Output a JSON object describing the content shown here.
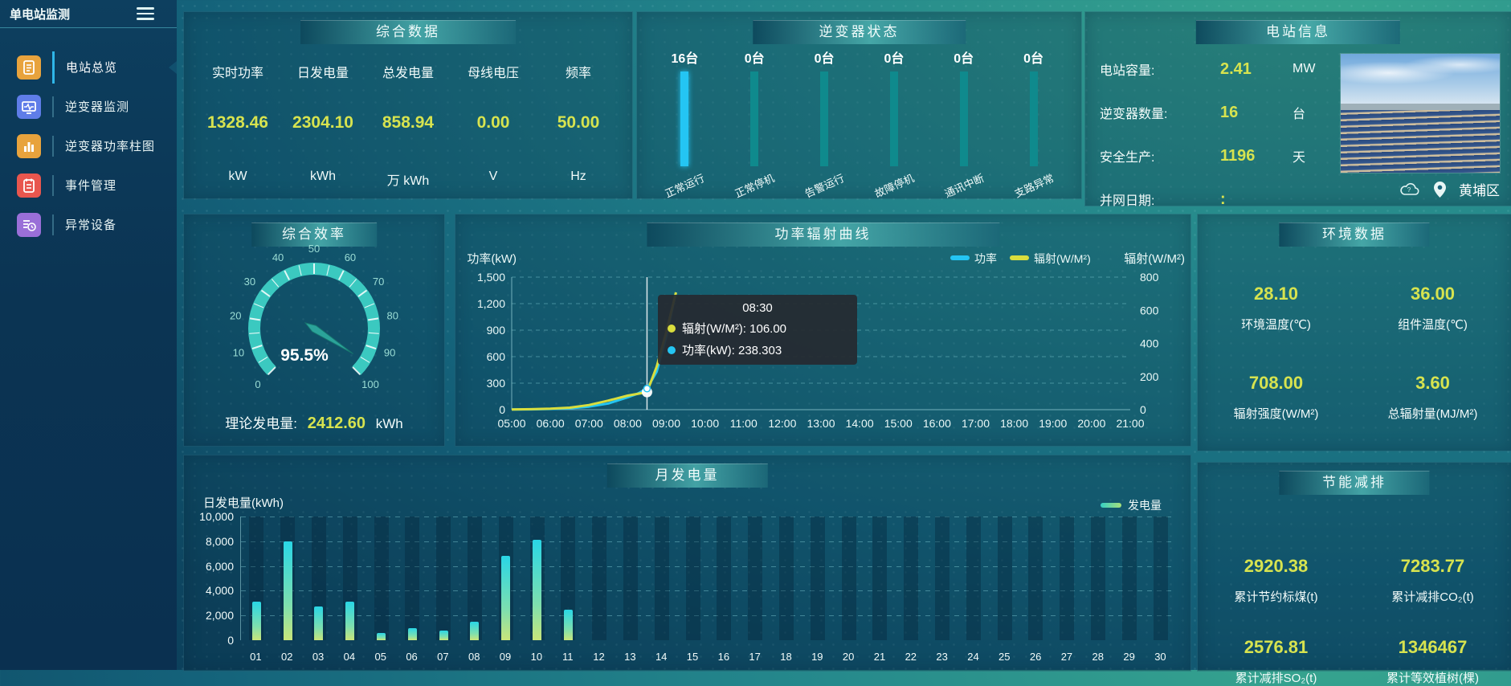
{
  "app": {
    "title": "单电站监测"
  },
  "sidebar": {
    "items": [
      {
        "label": "电站总览",
        "icon": "document-icon",
        "color": "#e8a33d",
        "active": true
      },
      {
        "label": "逆变器监测",
        "icon": "monitor-icon",
        "color": "#5f7de8",
        "active": false
      },
      {
        "label": "逆变器功率柱图",
        "icon": "barchart-icon",
        "color": "#e8a33d",
        "active": false
      },
      {
        "label": "事件管理",
        "icon": "notebook-icon",
        "color": "#e8564e",
        "active": false
      },
      {
        "label": "异常设备",
        "icon": "device-clock-icon",
        "color": "#9a6fd8",
        "active": false
      }
    ]
  },
  "summary": {
    "title": "综合数据",
    "metrics": [
      {
        "label": "实时功率",
        "value": "1328.46",
        "unit": "kW"
      },
      {
        "label": "日发电量",
        "value": "2304.10",
        "unit": "kWh"
      },
      {
        "label": "总发电量",
        "value": "858.94",
        "unit": "万 kWh"
      },
      {
        "label": "母线电压",
        "value": "0.00",
        "unit": "V"
      },
      {
        "label": "频率",
        "value": "50.00",
        "unit": "Hz"
      }
    ]
  },
  "inverter_status": {
    "title": "逆变器状态",
    "bars": [
      {
        "count": "16台",
        "label": "正常运行",
        "color": "#24c5f3",
        "glow": true
      },
      {
        "count": "0台",
        "label": "正常停机",
        "color": "#0f8a8d",
        "glow": false
      },
      {
        "count": "0台",
        "label": "告警运行",
        "color": "#0f8a8d",
        "glow": false
      },
      {
        "count": "0台",
        "label": "故障停机",
        "color": "#0f8a8d",
        "glow": false
      },
      {
        "count": "0台",
        "label": "通讯中断",
        "color": "#0f8a8d",
        "glow": false
      },
      {
        "count": "0台",
        "label": "支路异常",
        "color": "#0f8a8d",
        "glow": false
      }
    ]
  },
  "station_info": {
    "title": "电站信息",
    "rows": [
      {
        "label": "电站容量:",
        "value": "2.41",
        "unit": "MW"
      },
      {
        "label": "逆变器数量:",
        "value": "16",
        "unit": "台"
      },
      {
        "label": "安全生产:",
        "value": "1196",
        "unit": "天"
      },
      {
        "label": "并网日期:",
        "value": ":",
        "unit": ""
      }
    ],
    "location": "黄埔区"
  },
  "efficiency": {
    "title": "综合效率",
    "gauge": {
      "min": 0,
      "max": 100,
      "value": 95.5,
      "display": "95.5%",
      "tick_labels": [
        "0",
        "10",
        "20",
        "30",
        "40",
        "50",
        "60",
        "70",
        "80",
        "90",
        "100"
      ],
      "ring_color": "#3ed0c5",
      "needle_color": "#2ba39a"
    },
    "theory": {
      "label": "理论发电量:",
      "value": "2412.60",
      "unit": "kWh"
    }
  },
  "radiation_chart": {
    "title": "功率辐射曲线",
    "type": "line",
    "y_left_name": "功率(kW)",
    "y_right_name": "辐射(W/M²)",
    "y_left_ticks": [
      "1,500",
      "1,200",
      "900",
      "600",
      "300",
      "0"
    ],
    "y_right_ticks": [
      "800",
      "600",
      "400",
      "200",
      "0"
    ],
    "y_left_max": 1500,
    "y_right_max": 800,
    "x_labels": [
      "05:00",
      "06:00",
      "07:00",
      "08:00",
      "09:00",
      "10:00",
      "11:00",
      "12:00",
      "13:00",
      "14:00",
      "15:00",
      "16:00",
      "17:00",
      "18:00",
      "19:00",
      "20:00",
      "21:00"
    ],
    "legend": [
      {
        "name": "功率",
        "color": "#24c5f3"
      },
      {
        "name": "辐射(W/M²)",
        "color": "#d9dd3d"
      }
    ],
    "series": {
      "times_h": [
        5,
        5.5,
        6,
        6.5,
        7,
        7.5,
        8,
        8.25,
        8.5,
        8.75,
        9,
        9.25
      ],
      "power_kw": [
        2,
        4,
        8,
        15,
        35,
        70,
        140,
        180,
        238.3,
        430,
        830,
        1328.46
      ],
      "radiation_wm2": [
        1,
        3,
        6,
        12,
        28,
        55,
        85,
        95,
        106,
        260,
        470,
        708
      ]
    },
    "marker_time_h": 8.5,
    "tooltip": {
      "time": "08:30",
      "rows": [
        {
          "color": "#d9dd3d",
          "text": "辐射(W/M²): 106.00"
        },
        {
          "color": "#24c5f3",
          "text": "功率(kW): 238.303"
        }
      ]
    }
  },
  "environment": {
    "title": "环境数据",
    "cells": [
      {
        "value": "28.10",
        "label": "环境温度(℃)"
      },
      {
        "value": "36.00",
        "label": "组件温度(℃)"
      },
      {
        "value": "708.00",
        "label": "辐射强度(W/M²)"
      },
      {
        "value": "3.60",
        "label": "总辐射量(MJ/M²)"
      }
    ]
  },
  "monthly_chart": {
    "title": "月发电量",
    "type": "bar",
    "axis_name": "日发电量(kWh)",
    "legend": "发电量",
    "y_ticks": [
      "10,000",
      "8,000",
      "6,000",
      "4,000",
      "2,000",
      "0"
    ],
    "y_max": 10000,
    "days": [
      "01",
      "02",
      "03",
      "04",
      "05",
      "06",
      "07",
      "08",
      "09",
      "10",
      "11",
      "12",
      "13",
      "14",
      "15",
      "16",
      "17",
      "18",
      "19",
      "20",
      "21",
      "22",
      "23",
      "24",
      "25",
      "26",
      "27",
      "28",
      "29",
      "30"
    ],
    "values": [
      3100,
      8000,
      2700,
      3100,
      600,
      1000,
      800,
      1500,
      6800,
      8100,
      2500,
      0,
      0,
      0,
      0,
      0,
      0,
      0,
      0,
      0,
      0,
      0,
      0,
      0,
      0,
      0,
      0,
      0,
      0,
      0
    ]
  },
  "energy_saving": {
    "title": "节能减排",
    "cells": [
      {
        "value": "2920.38",
        "label": "累计节约标煤(t)"
      },
      {
        "value": "7283.77",
        "label": "累计减排CO₂(t)"
      },
      {
        "value": "2576.81",
        "label": "累计减排SO₂(t)"
      },
      {
        "value": "1346467",
        "label": "累计等效植树(棵)"
      }
    ]
  }
}
